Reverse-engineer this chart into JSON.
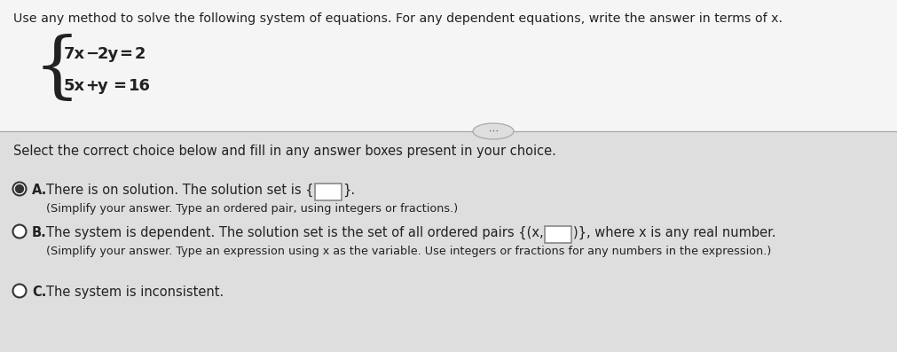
{
  "bg_color": "#f0f0f0",
  "top_section_bg": "#ffffff",
  "bottom_section_bg": "#d8d8d8",
  "title_text": "Use any method to solve the following system of equations. For any dependent equations, write the answer in terms of x.",
  "eq1": "7x−2y=2",
  "eq2": "5x+y=16",
  "select_text": "Select the correct choice below and fill in any answer boxes present in your choice.",
  "choice_A_main": "There is on solution. The solution set is {",
  "choice_A_end": "}.",
  "choice_A_sub": "(Simplify your answer. Type an ordered pair, using integers or fractions.)",
  "choice_B_main1": "The system is dependent. The solution set is the set of all ordered pairs {(x,",
  "choice_B_main2": ")}, where x is any real number.",
  "choice_B_sub": "(Simplify your answer. Type an expression using x as the variable. Use integers or fractions for any numbers in the expression.)",
  "choice_C_main": "The system is inconsistent.",
  "font_color": "#222222",
  "radio_color": "#333333",
  "box_edge_color": "#888888",
  "divider_color": "#aaaaaa"
}
